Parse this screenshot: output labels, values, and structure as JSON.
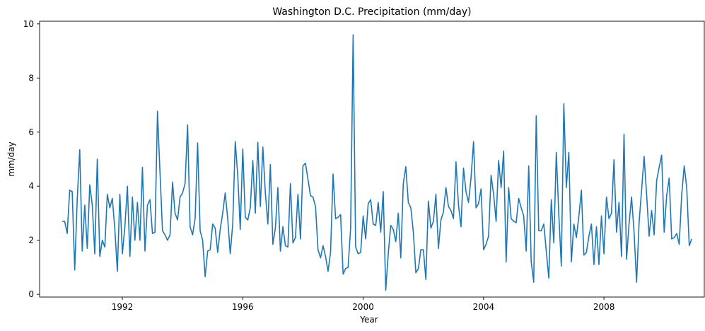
{
  "chart_data": {
    "type": "line",
    "title": "Washington D.C. Precipitation (mm/day)",
    "xlabel": "Year",
    "ylabel": "mm/day",
    "x_start": "1990-01",
    "x_step": "month",
    "xlim": [
      "1989-04",
      "2011-05"
    ],
    "ylim": [
      -0.1,
      10.1
    ],
    "xticks": [
      {
        "date": "1992-01",
        "label": "1992"
      },
      {
        "date": "1996-01",
        "label": "1996"
      },
      {
        "date": "2000-01",
        "label": "2000"
      },
      {
        "date": "2004-01",
        "label": "2004"
      },
      {
        "date": "2008-01",
        "label": "2008"
      }
    ],
    "yticks": [
      0,
      2,
      4,
      6,
      8,
      10
    ],
    "grid": false,
    "legend": "none",
    "series": [
      {
        "color": "#1f77b4",
        "values": [
          2.7,
          2.7,
          2.25,
          3.85,
          3.8,
          0.9,
          3.5,
          5.35,
          1.6,
          3.3,
          1.7,
          4.05,
          3.3,
          1.5,
          5.0,
          1.4,
          2.0,
          1.75,
          3.7,
          3.2,
          3.55,
          2.4,
          0.85,
          3.7,
          1.5,
          2.5,
          4.0,
          1.4,
          3.6,
          2.0,
          3.4,
          2.0,
          4.7,
          1.6,
          3.3,
          3.5,
          2.25,
          2.3,
          6.77,
          4.5,
          2.35,
          2.2,
          2.0,
          2.2,
          4.15,
          3.0,
          2.75,
          3.6,
          3.75,
          4.1,
          6.27,
          2.5,
          2.2,
          2.8,
          5.6,
          2.35,
          2.0,
          0.65,
          1.6,
          1.65,
          2.6,
          2.45,
          1.55,
          2.4,
          3.0,
          3.75,
          2.8,
          1.5,
          2.6,
          5.65,
          4.4,
          2.4,
          5.37,
          2.85,
          2.75,
          3.2,
          4.95,
          3.0,
          5.62,
          3.25,
          5.45,
          3.75,
          2.6,
          4.8,
          1.85,
          2.45,
          3.95,
          1.6,
          2.5,
          1.8,
          1.75,
          4.1,
          1.9,
          2.1,
          3.7,
          2.05,
          4.75,
          4.85,
          4.25,
          3.65,
          3.6,
          3.25,
          1.65,
          1.35,
          1.8,
          1.4,
          0.85,
          1.55,
          4.45,
          2.8,
          2.85,
          2.95,
          0.75,
          0.95,
          1.0,
          2.45,
          9.6,
          1.75,
          1.5,
          1.55,
          2.9,
          2.05,
          3.35,
          3.5,
          2.6,
          2.55,
          3.4,
          2.3,
          3.8,
          0.15,
          1.5,
          2.55,
          2.4,
          1.95,
          3.0,
          1.35,
          4.1,
          4.72,
          3.4,
          3.2,
          2.3,
          0.8,
          0.95,
          1.65,
          1.65,
          0.55,
          3.45,
          2.45,
          2.7,
          3.7,
          1.7,
          2.75,
          3.05,
          3.95,
          3.25,
          3.1,
          2.8,
          4.9,
          3.3,
          2.5,
          4.67,
          3.8,
          3.4,
          4.3,
          5.65,
          3.2,
          3.35,
          3.9,
          1.65,
          1.85,
          2.15,
          4.4,
          3.7,
          2.7,
          4.95,
          3.95,
          5.3,
          1.2,
          3.95,
          2.8,
          2.7,
          2.65,
          3.55,
          3.2,
          2.9,
          1.6,
          4.75,
          1.2,
          0.45,
          6.6,
          2.35,
          2.35,
          2.6,
          1.6,
          0.6,
          3.5,
          1.9,
          5.25,
          2.95,
          1.05,
          7.05,
          3.95,
          5.25,
          1.2,
          2.6,
          2.1,
          2.9,
          3.85,
          1.45,
          1.55,
          2.15,
          2.6,
          1.1,
          2.5,
          1.1,
          2.9,
          1.5,
          3.6,
          2.8,
          3.0,
          4.98,
          2.3,
          3.4,
          1.4,
          5.92,
          1.3,
          2.6,
          3.6,
          2.3,
          0.45,
          2.65,
          3.85,
          5.1,
          3.7,
          2.15,
          3.1,
          2.2,
          4.2,
          4.7,
          5.15,
          2.3,
          3.65,
          4.3,
          2.05,
          2.1,
          2.25,
          1.85,
          3.7,
          4.75,
          3.95,
          1.8,
          2.05
        ]
      }
    ]
  }
}
